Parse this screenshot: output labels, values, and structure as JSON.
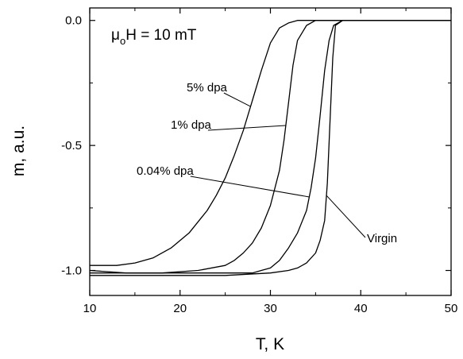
{
  "chart_data": {
    "type": "line",
    "xlabel": "T, K",
    "ylabel": "m, a.u.",
    "xlim": [
      10,
      50
    ],
    "ylim": [
      -1.1,
      0.05
    ],
    "x_ticks": [
      "10",
      "20",
      "30",
      "40",
      "50"
    ],
    "y_ticks": [
      "0.0",
      "-0.5",
      "-1.0"
    ],
    "grid": false,
    "field_label": {
      "prefix": "μ",
      "sub": "o",
      "rest": "H = 10 mT"
    },
    "series": [
      {
        "name": "5% dpa",
        "x": [
          10,
          13,
          15,
          17,
          19,
          21,
          23,
          24,
          25,
          26,
          27,
          28,
          29,
          30,
          31,
          32,
          33,
          50
        ],
        "y": [
          -0.98,
          -0.98,
          -0.97,
          -0.95,
          -0.91,
          -0.85,
          -0.76,
          -0.7,
          -0.63,
          -0.54,
          -0.44,
          -0.32,
          -0.2,
          -0.09,
          -0.03,
          -0.01,
          0.0,
          0.0
        ]
      },
      {
        "name": "1% dpa",
        "x": [
          10,
          14,
          18,
          22,
          25,
          26,
          27,
          28,
          29,
          30,
          31,
          31.5,
          32,
          32.5,
          33,
          34,
          35,
          50
        ],
        "y": [
          -1.0,
          -1.01,
          -1.01,
          -1.0,
          -0.98,
          -0.96,
          -0.93,
          -0.89,
          -0.83,
          -0.74,
          -0.6,
          -0.48,
          -0.33,
          -0.18,
          -0.08,
          -0.02,
          0.0,
          0.0
        ]
      },
      {
        "name": "0.04% dpa",
        "x": [
          10,
          15,
          20,
          25,
          28,
          29,
          30,
          31,
          32,
          33,
          34,
          34.5,
          35,
          35.5,
          36,
          36.5,
          37,
          38,
          50
        ],
        "y": [
          -1.01,
          -1.01,
          -1.01,
          -1.01,
          -1.01,
          -1.0,
          -0.99,
          -0.96,
          -0.91,
          -0.85,
          -0.76,
          -0.67,
          -0.55,
          -0.38,
          -0.2,
          -0.08,
          -0.02,
          0.0,
          0.0
        ]
      },
      {
        "name": "Virgin",
        "x": [
          10,
          15,
          20,
          25,
          30,
          32,
          33,
          34,
          35,
          35.5,
          36,
          36.3,
          36.6,
          36.9,
          37.2,
          38,
          50
        ],
        "y": [
          -1.02,
          -1.02,
          -1.02,
          -1.02,
          -1.01,
          -1.0,
          -0.99,
          -0.97,
          -0.93,
          -0.88,
          -0.8,
          -0.65,
          -0.4,
          -0.15,
          -0.02,
          0.0,
          0.0
        ]
      }
    ],
    "annotations": [
      {
        "text": "5% dpa",
        "series": "5% dpa",
        "target_x": 27.8
      },
      {
        "text": "1% dpa",
        "series": "1% dpa",
        "target_x": 31.7
      },
      {
        "text": "0.04% dpa",
        "series": "0.04% dpa",
        "target_x": 34.3
      },
      {
        "text": "Virgin",
        "series": "Virgin",
        "target_x": 36.2
      }
    ]
  }
}
